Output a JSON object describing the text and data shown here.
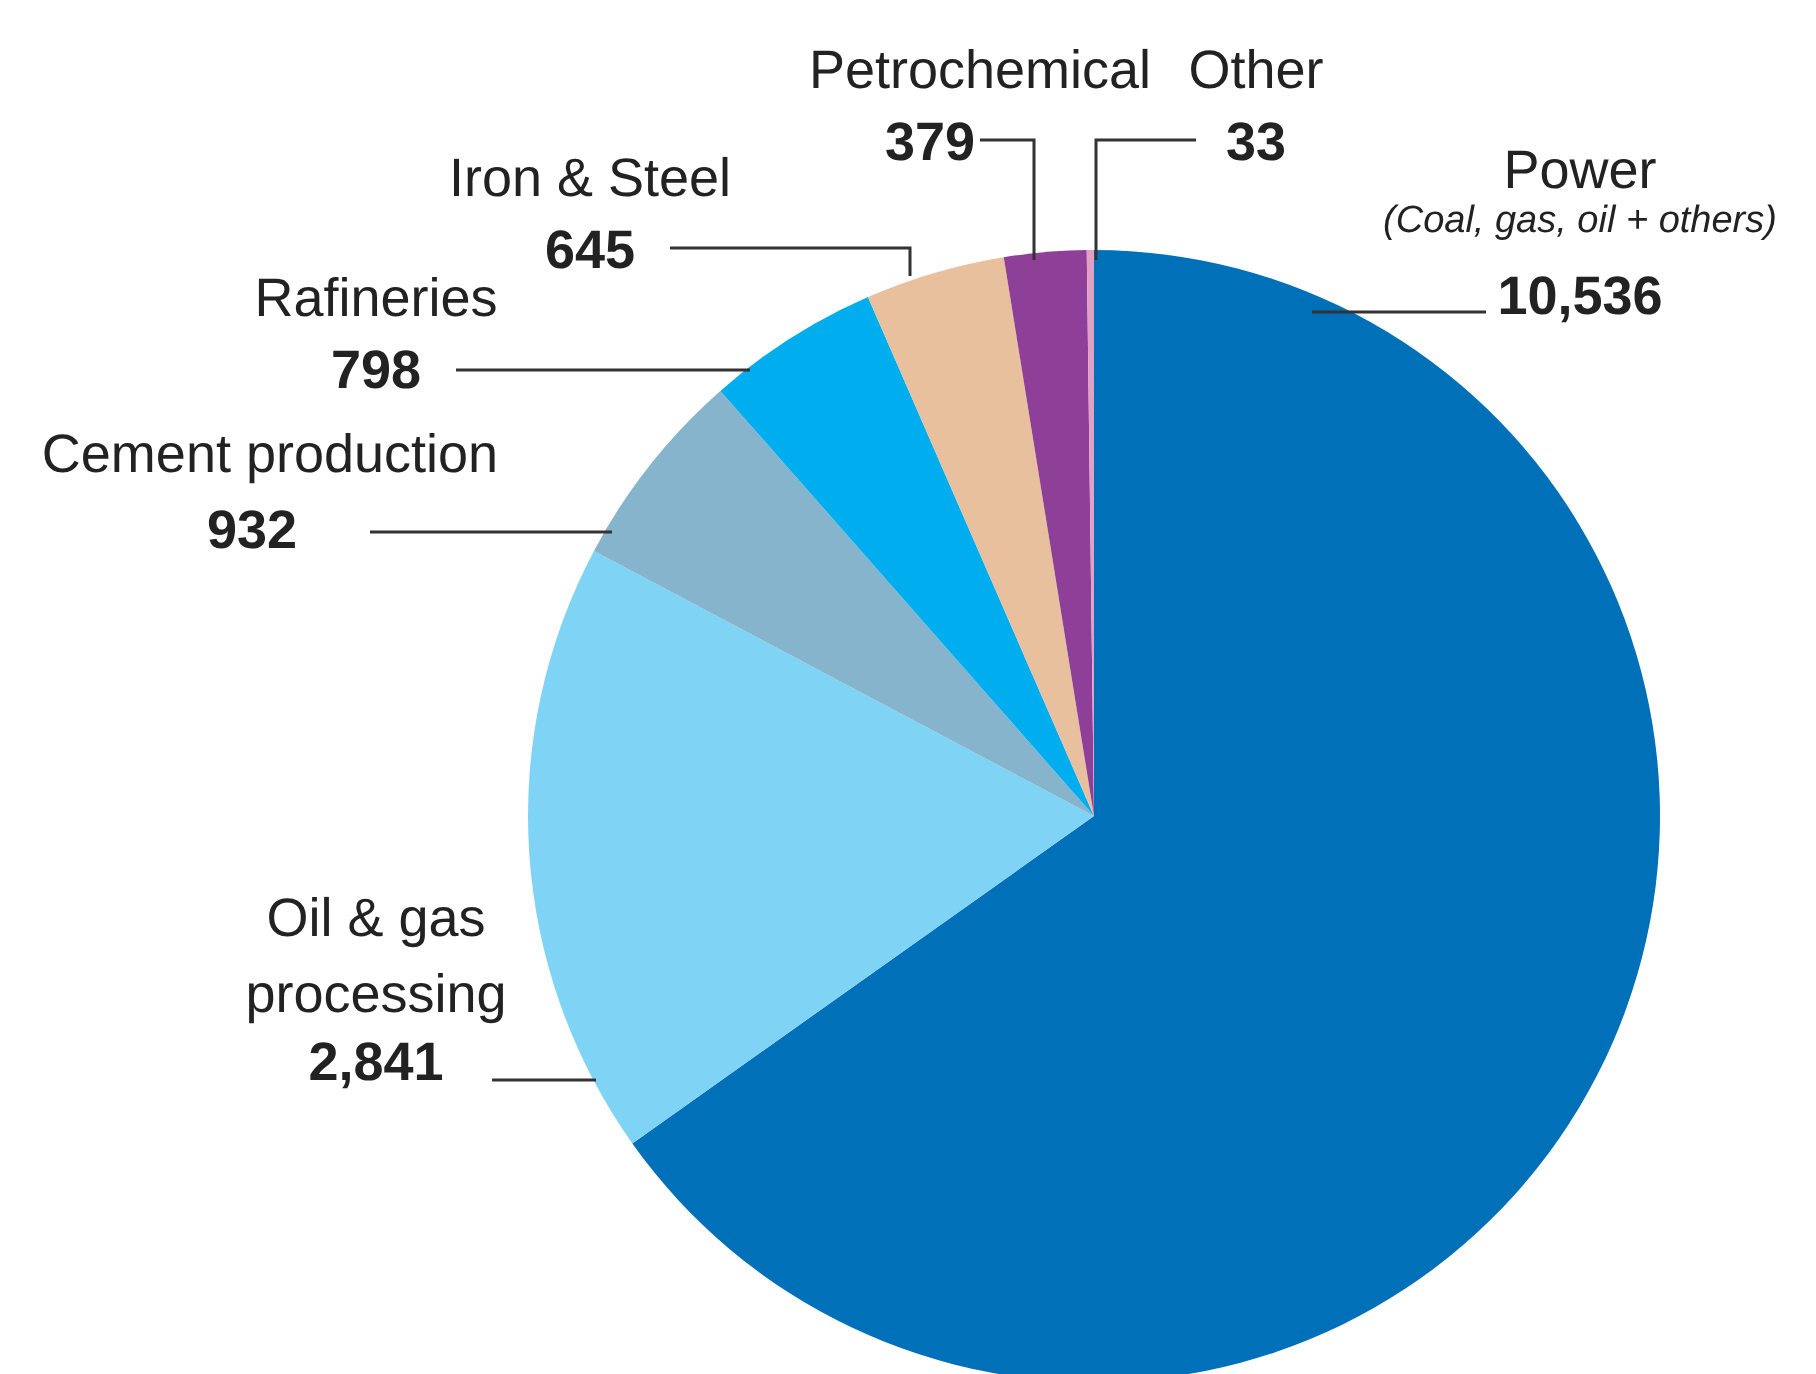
{
  "chart_data": {
    "type": "pie",
    "categories": [
      "Power",
      "Oil & gas processing",
      "Cement production",
      "Rafineries",
      "Iron & Steel",
      "Petrochemical",
      "Other"
    ],
    "values": [
      10536,
      2841,
      932,
      798,
      645,
      379,
      33
    ],
    "colors": [
      "#0070b8",
      "#7fd3f5",
      "#86b4cc",
      "#00aeef",
      "#e8c09e",
      "#8e3f98",
      "#e3a0c6"
    ],
    "annotations": [
      "(Coal, gas, oil + others)"
    ],
    "value_labels": [
      "10,536",
      "2,841",
      "932",
      "798",
      "645",
      "379",
      "33"
    ],
    "legend": false
  }
}
